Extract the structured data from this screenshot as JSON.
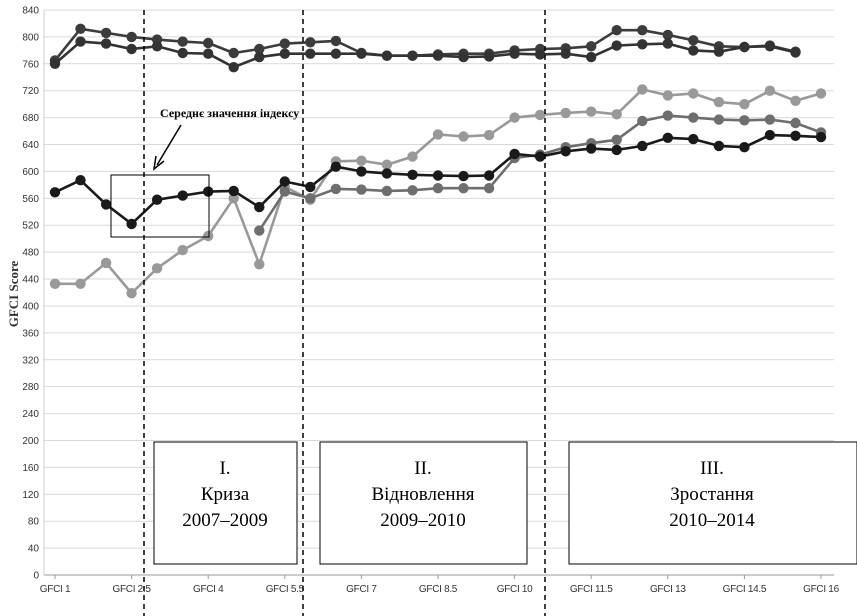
{
  "chart_data": {
    "type": "line",
    "ylabel": "GFCI Score",
    "ylim": [
      0,
      840
    ],
    "yticks": [
      0,
      40,
      80,
      120,
      160,
      200,
      240,
      280,
      320,
      360,
      400,
      440,
      480,
      520,
      560,
      600,
      640,
      680,
      720,
      760,
      800,
      840
    ],
    "x_tick_labels": [
      "GFCI 1",
      "GFCI 2.5",
      "GFCI 4",
      "GFCI 5.5",
      "GFCI 7",
      "GFCI 8.5",
      "GFCI 10",
      "GFCI 11.5",
      "GFCI 13",
      "GFCI 14.5",
      "GFCI 16"
    ],
    "x": [
      1,
      1.5,
      2,
      2.5,
      3,
      3.5,
      4,
      4.5,
      5,
      5.5,
      6,
      6.5,
      7,
      7.5,
      8,
      8.5,
      9,
      9.5,
      10,
      10.5,
      11,
      11.5,
      12,
      12.5,
      13,
      13.5,
      14,
      14.5,
      15,
      15.5,
      16
    ],
    "xlim": [
      1,
      16
    ],
    "grid": true,
    "series": [
      {
        "color": "#3c3c3c",
        "values": [
          765,
          812,
          806,
          800,
          796,
          793,
          791,
          776,
          782,
          790,
          792,
          794,
          776,
          772,
          772,
          774,
          775,
          775,
          780,
          782,
          783,
          786,
          810,
          810,
          803,
          795,
          786,
          785,
          787,
          778,
          0
        ]
      },
      {
        "color": "#333333",
        "values": [
          760,
          793,
          790,
          782,
          786,
          776,
          775,
          755,
          770,
          775,
          775,
          775,
          775,
          772,
          772,
          772,
          770,
          771,
          775,
          774,
          775,
          770,
          787,
          789,
          790,
          780,
          778,
          785,
          786,
          777,
          0
        ]
      },
      {
        "color": "#999999",
        "values": [
          433,
          433,
          464,
          419,
          456,
          483,
          504,
          560,
          462,
          577,
          558,
          615,
          616,
          610,
          622,
          655,
          652,
          654,
          680,
          684,
          687,
          689,
          685,
          722,
          713,
          716,
          703,
          700,
          720,
          705,
          716
        ]
      },
      {
        "color": "#6e6e6e",
        "values": [
          0,
          0,
          0,
          0,
          0,
          0,
          0,
          0,
          512,
          570,
          560,
          574,
          573,
          571,
          572,
          575,
          575,
          575,
          620,
          625,
          636,
          642,
          647,
          675,
          683,
          680,
          677,
          676,
          677,
          672,
          658
        ]
      },
      {
        "color": "#1a1a1a",
        "values": [
          569,
          587,
          551,
          522,
          558,
          564,
          570,
          571,
          547,
          585,
          577,
          607,
          600,
          597,
          595,
          594,
          593,
          594,
          626,
          622,
          630,
          634,
          632,
          638,
          650,
          648,
          638,
          636,
          654,
          653,
          651
        ]
      }
    ]
  },
  "annotation": {
    "label": "Середнє значення індексу"
  },
  "phases": [
    {
      "numeral": "I.",
      "name": "Криза",
      "years": "2007–2009"
    },
    {
      "numeral": "II.",
      "name": "Відновлення",
      "years": "2009–2010"
    },
    {
      "numeral": "III.",
      "name": "Зростання",
      "years": "2010–2014"
    }
  ]
}
